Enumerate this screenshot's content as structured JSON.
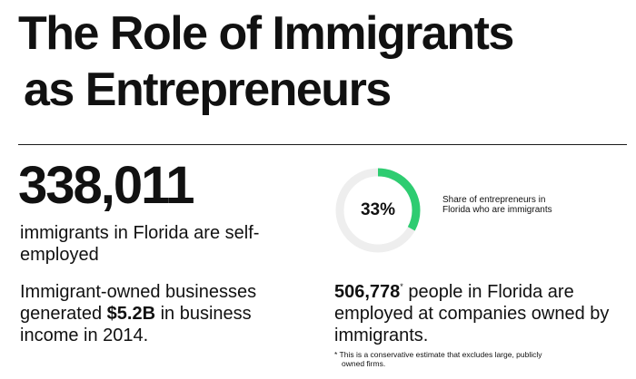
{
  "title": {
    "line1": "The Role of Immigrants",
    "line2": "as Entrepreneurs"
  },
  "self_employed": {
    "number": "338,011",
    "text": "immigrants in Florida are self-employed"
  },
  "revenue": {
    "prefix": "Immigrant-owned businesses generated ",
    "amount": "$5.2B",
    "suffix": " in business income in 2014."
  },
  "share": {
    "percent_label": "33%",
    "fraction": 0.33,
    "label": "Share of entrepreneurs in Florida who are immigrants",
    "colors": {
      "filled": "#2ecc71",
      "track": "#eeeeee"
    }
  },
  "employed": {
    "number": "506,778",
    "marker": "*",
    "text": " people in Florida are employed at companies owned by immigrants."
  },
  "footnote": {
    "marker": "*",
    "line1": "This is a conservative estimate that excludes large, publicly",
    "line2": "owned firms."
  }
}
